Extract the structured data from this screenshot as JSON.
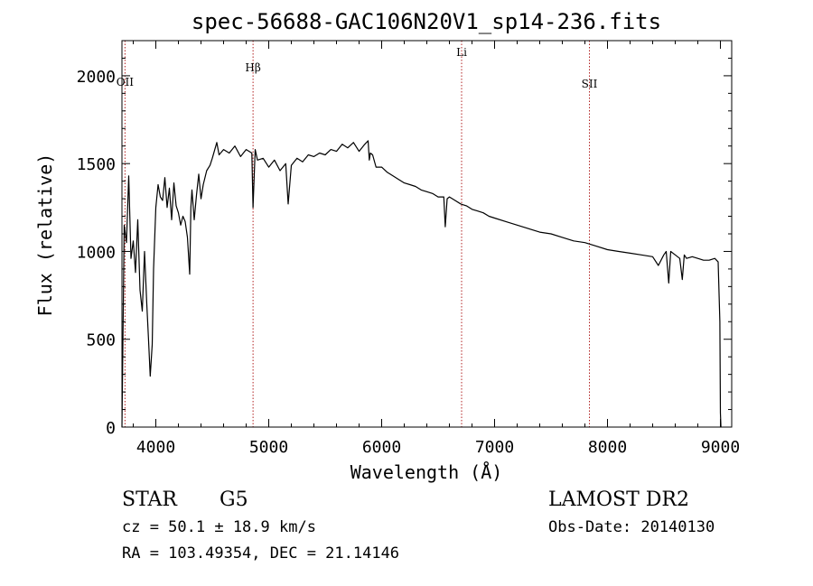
{
  "chart_data": {
    "type": "line",
    "title": "spec-56688-GAC106N20V1_sp14-236.fits",
    "xlabel": "Wavelength (Å)",
    "ylabel": "Flux (relative)",
    "xlim": [
      3700,
      9100
    ],
    "ylim": [
      0,
      2200
    ],
    "xticks": [
      "4000",
      "5000",
      "6000",
      "7000",
      "8000",
      "9000"
    ],
    "yticks": [
      "0",
      "500",
      "1000",
      "1500",
      "2000"
    ],
    "line_color": "#000000",
    "marker_color": "#b22222",
    "spectral_lines": [
      {
        "name": "OII",
        "wavelength": 3727
      },
      {
        "name": "Hβ",
        "wavelength": 4861
      },
      {
        "name": "Li",
        "wavelength": 6708
      },
      {
        "name": "SII",
        "wavelength": 7840
      }
    ],
    "series": [
      {
        "x": [
          3700,
          3720,
          3740,
          3760,
          3780,
          3800,
          3820,
          3840,
          3860,
          3880,
          3900,
          3920,
          3935,
          3950,
          3968,
          3980,
          4000,
          4020,
          4040,
          4060,
          4080,
          4100,
          4120,
          4140,
          4160,
          4180,
          4200,
          4220,
          4240,
          4260,
          4280,
          4300,
          4310,
          4320,
          4340,
          4360,
          4380,
          4400,
          4420,
          4450,
          4480,
          4500,
          4540,
          4560,
          4600,
          4650,
          4700,
          4750,
          4800,
          4850,
          4861,
          4880,
          4900,
          4950,
          5000,
          5050,
          5100,
          5150,
          5172,
          5200,
          5250,
          5300,
          5350,
          5400,
          5450,
          5500,
          5550,
          5600,
          5650,
          5700,
          5750,
          5800,
          5850,
          5880,
          5890,
          5900,
          5920,
          5950,
          6000,
          6050,
          6100,
          6150,
          6200,
          6250,
          6300,
          6350,
          6400,
          6450,
          6500,
          6550,
          6563,
          6580,
          6600,
          6650,
          6700,
          6750,
          6800,
          6850,
          6900,
          6950,
          7000,
          7100,
          7200,
          7300,
          7400,
          7500,
          7600,
          7700,
          7800,
          7900,
          8000,
          8100,
          8200,
          8300,
          8400,
          8450,
          8498,
          8520,
          8542,
          8560,
          8600,
          8640,
          8662,
          8680,
          8700,
          8750,
          8800,
          8850,
          8900,
          8950,
          8980,
          8995,
          9000,
          9005
        ],
        "y": [
          0,
          1150,
          1050,
          1430,
          960,
          1060,
          880,
          1180,
          780,
          660,
          1000,
          700,
          500,
          290,
          470,
          900,
          1250,
          1380,
          1310,
          1290,
          1420,
          1250,
          1360,
          1180,
          1390,
          1260,
          1220,
          1150,
          1200,
          1170,
          1080,
          870,
          1250,
          1350,
          1180,
          1320,
          1440,
          1300,
          1380,
          1460,
          1490,
          1530,
          1620,
          1550,
          1580,
          1560,
          1600,
          1540,
          1580,
          1560,
          1250,
          1580,
          1520,
          1530,
          1480,
          1520,
          1460,
          1500,
          1270,
          1490,
          1530,
          1510,
          1550,
          1540,
          1560,
          1550,
          1580,
          1570,
          1610,
          1590,
          1620,
          1570,
          1610,
          1630,
          1520,
          1560,
          1550,
          1480,
          1480,
          1450,
          1430,
          1410,
          1390,
          1380,
          1370,
          1350,
          1340,
          1330,
          1310,
          1310,
          1140,
          1300,
          1310,
          1290,
          1270,
          1260,
          1240,
          1230,
          1220,
          1200,
          1190,
          1170,
          1150,
          1130,
          1110,
          1100,
          1080,
          1060,
          1050,
          1030,
          1010,
          1000,
          990,
          980,
          970,
          920,
          980,
          1000,
          820,
          1000,
          980,
          960,
          840,
          980,
          960,
          970,
          960,
          950,
          950,
          960,
          940,
          600,
          80,
          0
        ]
      }
    ]
  },
  "footer": {
    "object_class": "STAR",
    "subclass": "G5",
    "velocity": "cz = 50.1 ± 18.9 km/s",
    "coordinates": "RA = 103.49354, DEC =  21.14146",
    "survey": "LAMOST DR2",
    "obs_date": "Obs-Date: 20140130"
  }
}
